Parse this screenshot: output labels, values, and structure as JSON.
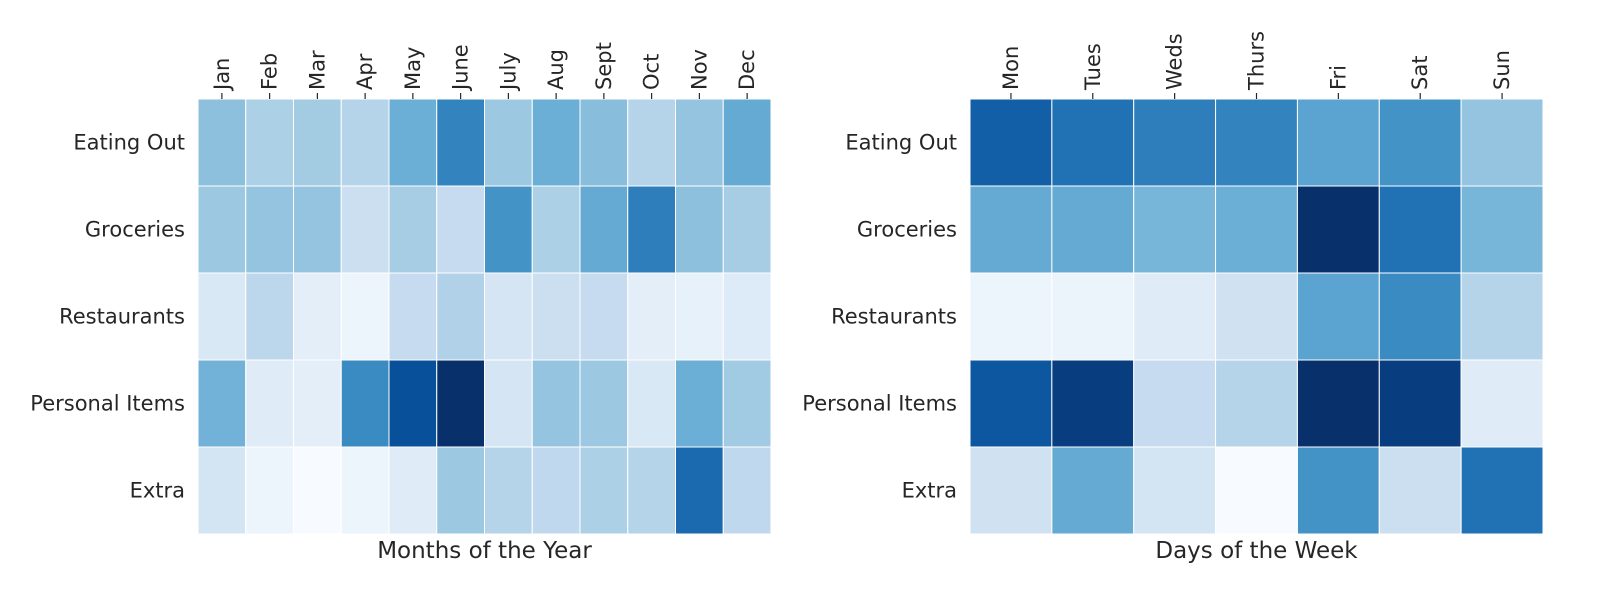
{
  "chart_data": [
    {
      "type": "heatmap",
      "xlabel": "Months of the Year",
      "ylabel": "",
      "title": "",
      "x_categories": [
        "Jan",
        "Feb",
        "Mar",
        "Apr",
        "May",
        "June",
        "July",
        "Aug",
        "Sept",
        "Oct",
        "Nov",
        "Dec"
      ],
      "y_categories": [
        "Eating Out",
        "Groceries",
        "Restaurants",
        "Personal Items",
        "Extra"
      ],
      "colormap": "Blues",
      "colorbar": false,
      "x_tick_position": "top",
      "values": [
        [
          0.42,
          0.33,
          0.36,
          0.3,
          0.5,
          0.68,
          0.38,
          0.5,
          0.43,
          0.3,
          0.4,
          0.52
        ],
        [
          0.38,
          0.4,
          0.4,
          0.22,
          0.35,
          0.25,
          0.62,
          0.33,
          0.52,
          0.7,
          0.42,
          0.35
        ],
        [
          0.15,
          0.28,
          0.1,
          0.05,
          0.25,
          0.32,
          0.17,
          0.22,
          0.25,
          0.1,
          0.08,
          0.13
        ],
        [
          0.48,
          0.12,
          0.1,
          0.65,
          0.88,
          1.0,
          0.17,
          0.4,
          0.38,
          0.15,
          0.5,
          0.37
        ],
        [
          0.18,
          0.05,
          0.0,
          0.05,
          0.12,
          0.38,
          0.3,
          0.27,
          0.33,
          0.3,
          0.78,
          0.27
        ]
      ]
    },
    {
      "type": "heatmap",
      "xlabel": "Days of the Week",
      "ylabel": "",
      "title": "",
      "x_categories": [
        "Mon",
        "Tues",
        "Weds",
        "Thurs",
        "Fri",
        "Sat",
        "Sun"
      ],
      "y_categories": [
        "Eating Out",
        "Groceries",
        "Restaurants",
        "Personal Items",
        "Extra"
      ],
      "colormap": "Blues",
      "colorbar": false,
      "x_tick_position": "top",
      "values": [
        [
          0.82,
          0.75,
          0.7,
          0.68,
          0.55,
          0.62,
          0.4
        ],
        [
          0.52,
          0.52,
          0.47,
          0.5,
          1.0,
          0.75,
          0.47
        ],
        [
          0.05,
          0.06,
          0.12,
          0.2,
          0.55,
          0.65,
          0.3
        ],
        [
          0.85,
          0.95,
          0.25,
          0.3,
          1.0,
          0.95,
          0.12
        ],
        [
          0.2,
          0.52,
          0.18,
          0.0,
          0.62,
          0.22,
          0.75
        ]
      ]
    }
  ]
}
